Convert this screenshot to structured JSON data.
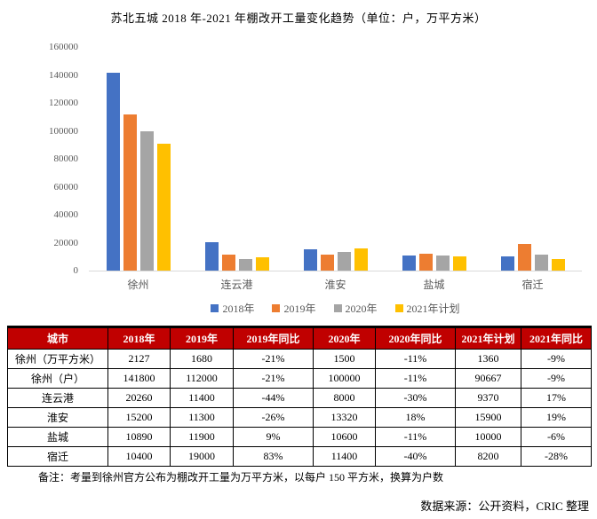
{
  "title": "苏北五城 2018 年-2021 年棚改开工量变化趋势（单位：户，万平方米）",
  "chart_data": {
    "type": "bar",
    "categories": [
      "徐州",
      "连云港",
      "淮安",
      "盐城",
      "宿迁"
    ],
    "series": [
      {
        "name": "2018年",
        "color": "#4472C4",
        "values": [
          141800,
          20260,
          15200,
          10890,
          10400
        ]
      },
      {
        "name": "2019年",
        "color": "#ED7D31",
        "values": [
          112000,
          11400,
          11300,
          11900,
          19000
        ]
      },
      {
        "name": "2020年",
        "color": "#A5A5A5",
        "values": [
          100000,
          8000,
          13320,
          10600,
          11400
        ]
      },
      {
        "name": "2021年计划",
        "color": "#FFC000",
        "values": [
          90667,
          9370,
          15900,
          10000,
          8200
        ]
      }
    ],
    "title": "苏北五城 2018 年-2021 年棚改开工量变化趋势（单位：户，万平方米）",
    "xlabel": "",
    "ylabel": "",
    "ylim": [
      0,
      160000
    ],
    "ytick_step": 20000,
    "grid": false,
    "legend_position": "bottom"
  },
  "table": {
    "header_bg": "#C00000",
    "header": [
      "城市",
      "2018年",
      "2019年",
      "2019年同比",
      "2020年",
      "2020年同比",
      "2021年计划",
      "2021年同比"
    ],
    "rows": [
      [
        "徐州（万平方米）",
        "2127",
        "1680",
        "-21%",
        "1500",
        "-11%",
        "1360",
        "-9%"
      ],
      [
        "徐州（户）",
        "141800",
        "112000",
        "-21%",
        "100000",
        "-11%",
        "90667",
        "-9%"
      ],
      [
        "连云港",
        "20260",
        "11400",
        "-44%",
        "8000",
        "-30%",
        "9370",
        "17%"
      ],
      [
        "淮安",
        "15200",
        "11300",
        "-26%",
        "13320",
        "18%",
        "15900",
        "19%"
      ],
      [
        "盐城",
        "10890",
        "11900",
        "9%",
        "10600",
        "-11%",
        "10000",
        "-6%"
      ],
      [
        "宿迁",
        "10400",
        "19000",
        "83%",
        "11400",
        "-40%",
        "8200",
        "-28%"
      ]
    ]
  },
  "note": "备注：考量到徐州官方公布为棚改开工量为万平方米，以每户 150 平方米，换算为户数",
  "source": "数据来源：公开资料，CRIC 整理"
}
